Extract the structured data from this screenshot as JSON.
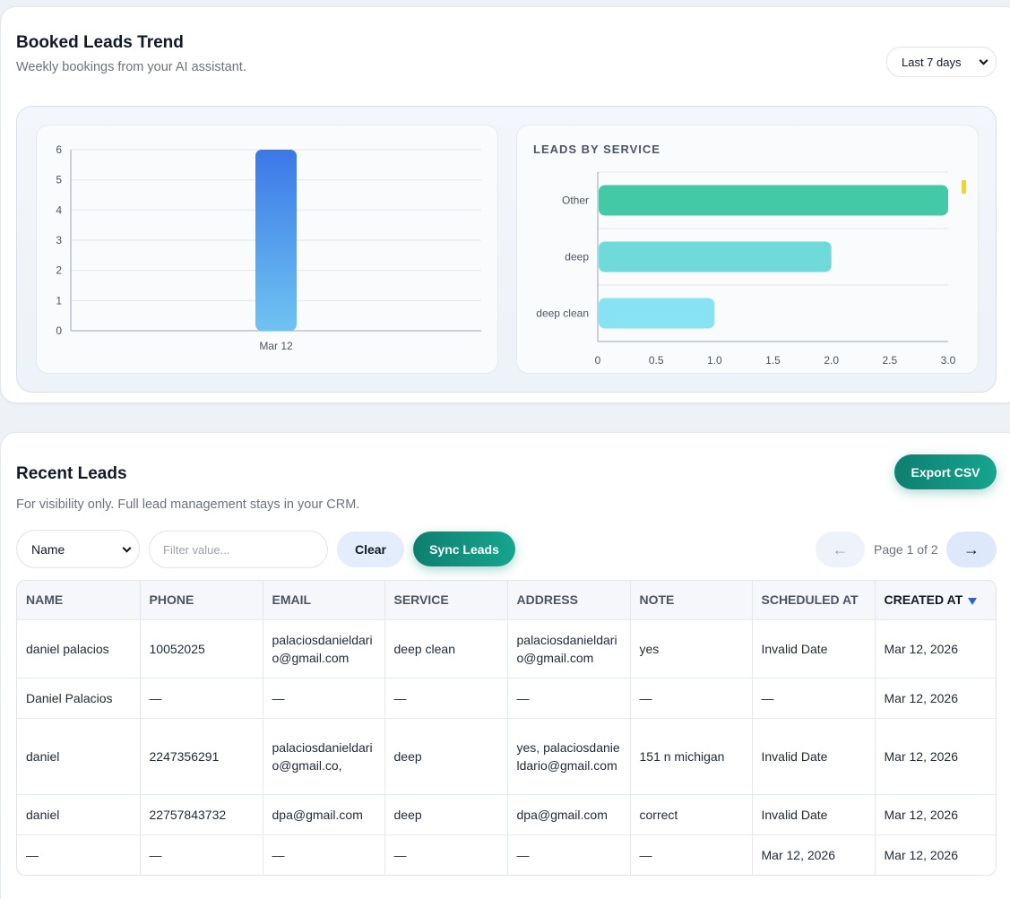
{
  "trend": {
    "title": "Booked Leads Trend",
    "subtitle": "Weekly bookings from your AI assistant.",
    "range_selected": "Last 7 days"
  },
  "chart_data": [
    {
      "type": "bar",
      "categories": [
        "Mar 12"
      ],
      "values": [
        6
      ],
      "ylim": [
        0,
        6
      ],
      "yticks": [
        0,
        1,
        2,
        3,
        4,
        5,
        6
      ],
      "grid": true,
      "colors": {
        "top": "#3b78e7",
        "bottom": "#6fc3f1"
      }
    },
    {
      "type": "bar",
      "orientation": "horizontal",
      "title": "LEADS BY SERVICE",
      "categories": [
        "Other",
        "deep",
        "deep clean"
      ],
      "values": [
        3,
        2,
        1
      ],
      "xlim": [
        0,
        3
      ],
      "xticks": [
        "0",
        "0.5",
        "1.0",
        "1.5",
        "2.0",
        "2.5",
        "3.0"
      ],
      "grid": true,
      "colors": [
        "#44c9a6",
        "#6fdad9",
        "#87e3f2"
      ],
      "legend_color": "#f5d90a"
    }
  ],
  "leads": {
    "title": "Recent Leads",
    "subtitle": "For visibility only. Full lead management stays in your CRM.",
    "export_label": "Export CSV",
    "filter_field": "Name",
    "filter_placeholder": "Filter value...",
    "clear_label": "Clear",
    "sync_label": "Sync Leads",
    "prev_label": "←",
    "next_label": "→",
    "page_label": "Page 1 of 2",
    "columns": [
      "NAME",
      "PHONE",
      "EMAIL",
      "SERVICE",
      "ADDRESS",
      "NOTE",
      "SCHEDULED AT",
      "CREATED AT"
    ],
    "rows": [
      [
        "daniel palacios",
        "10052025",
        "palaciosdanieldario@gmail.com",
        "deep clean",
        "palaciosdanieldario@gmail.com",
        "yes",
        "Invalid Date",
        "Mar 12, 2026"
      ],
      [
        "Daniel Palacios",
        "—",
        "—",
        "—",
        "—",
        "—",
        "—",
        "Mar 12, 2026"
      ],
      [
        "daniel",
        "2247356291",
        "palaciosdanieldario@gmail.co,",
        "deep",
        "yes, palaciosdanieldario@gmail.com",
        "151 n michigan",
        "Invalid Date",
        "Mar 12, 2026"
      ],
      [
        "daniel",
        "22757843732",
        "dpa@gmail.com",
        "deep",
        "dpa@gmail.com",
        "correct",
        "Invalid Date",
        "Mar 12, 2026"
      ],
      [
        "—",
        "—",
        "—",
        "—",
        "—",
        "—",
        "Mar 12, 2026",
        "Mar 12, 2026"
      ]
    ]
  }
}
